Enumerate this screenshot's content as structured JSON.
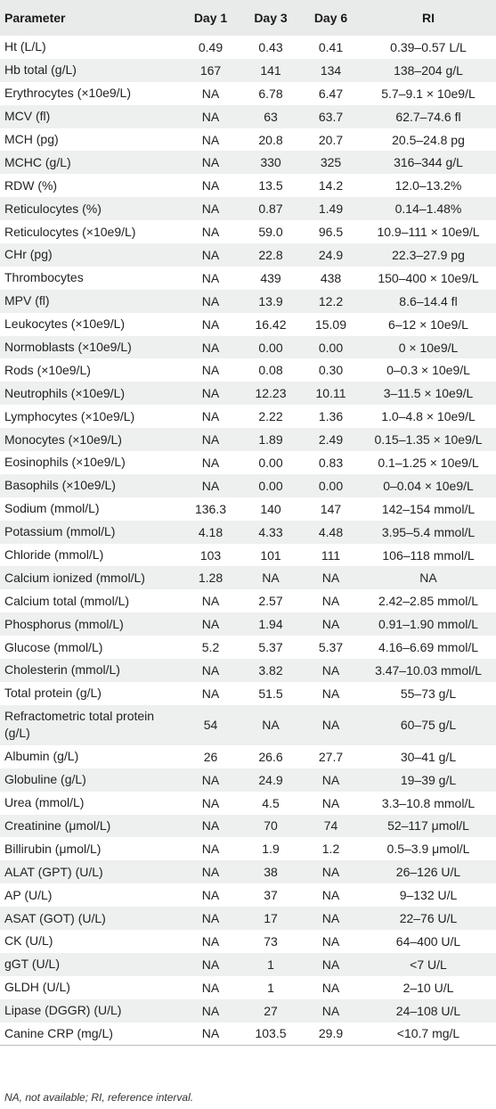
{
  "table": {
    "headers": [
      "Parameter",
      "Day 1",
      "Day 3",
      "Day 6",
      "RI"
    ],
    "rows": [
      [
        "Ht (L/L)",
        "0.49",
        "0.43",
        "0.41",
        "0.39–0.57 L/L"
      ],
      [
        "Hb total (g/L)",
        "167",
        "141",
        "134",
        "138–204 g/L"
      ],
      [
        "Erythrocytes (×10e9/L)",
        "NA",
        "6.78",
        "6.47",
        "5.7–9.1 × 10e9/L"
      ],
      [
        "MCV (fl)",
        "NA",
        "63",
        "63.7",
        "62.7–74.6 fl"
      ],
      [
        "MCH (pg)",
        "NA",
        "20.8",
        "20.7",
        "20.5–24.8 pg"
      ],
      [
        "MCHC (g/L)",
        "NA",
        "330",
        "325",
        "316–344 g/L"
      ],
      [
        "RDW (%)",
        "NA",
        "13.5",
        "14.2",
        "12.0–13.2%"
      ],
      [
        "Reticulocytes (%)",
        "NA",
        "0.87",
        "1.49",
        "0.14–1.48%"
      ],
      [
        "Reticulocytes (×10e9/L)",
        "NA",
        "59.0",
        "96.5",
        "10.9–111 × 10e9/L"
      ],
      [
        "CHr (pg)",
        "NA",
        "22.8",
        "24.9",
        "22.3–27.9 pg"
      ],
      [
        "Thrombocytes",
        "NA",
        "439",
        "438",
        "150–400 × 10e9/L"
      ],
      [
        "MPV (fl)",
        "NA",
        "13.9",
        "12.2",
        "8.6–14.4 fl"
      ],
      [
        "Leukocytes (×10e9/L)",
        "NA",
        "16.42",
        "15.09",
        "6–12 × 10e9/L"
      ],
      [
        "Normoblasts (×10e9/L)",
        "NA",
        "0.00",
        "0.00",
        "0 × 10e9/L"
      ],
      [
        "Rods (×10e9/L)",
        "NA",
        "0.08",
        "0.30",
        "0–0.3 × 10e9/L"
      ],
      [
        "Neutrophils (×10e9/L)",
        "NA",
        "12.23",
        "10.11",
        "3–11.5 × 10e9/L"
      ],
      [
        "Lymphocytes (×10e9/L)",
        "NA",
        "2.22",
        "1.36",
        "1.0–4.8 × 10e9/L"
      ],
      [
        "Monocytes (×10e9/L)",
        "NA",
        "1.89",
        "2.49",
        "0.15–1.35 × 10e9/L"
      ],
      [
        "Eosinophils (×10e9/L)",
        "NA",
        "0.00",
        "0.83",
        "0.1–1.25 × 10e9/L"
      ],
      [
        "Basophils (×10e9/L)",
        "NA",
        "0.00",
        "0.00",
        "0–0.04 × 10e9/L"
      ],
      [
        "Sodium (mmol/L)",
        "136.3",
        "140",
        "147",
        "142–154 mmol/L"
      ],
      [
        "Potassium (mmol/L)",
        "4.18",
        "4.33",
        "4.48",
        "3.95–5.4 mmol/L"
      ],
      [
        "Chloride (mmol/L)",
        "103",
        "101",
        "111",
        "106–118 mmol/L"
      ],
      [
        "Calcium ionized (mmol/L)",
        "1.28",
        "NA",
        "NA",
        "NA"
      ],
      [
        "Calcium total (mmol/L)",
        "NA",
        "2.57",
        "NA",
        "2.42–2.85 mmol/L"
      ],
      [
        "Phosphorus (mmol/L)",
        "NA",
        "1.94",
        "NA",
        "0.91–1.90 mmol/L"
      ],
      [
        "Glucose (mmol/L)",
        "5.2",
        "5.37",
        "5.37",
        "4.16–6.69 mmol/L"
      ],
      [
        "Cholesterin (mmol/L)",
        "NA",
        "3.82",
        "NA",
        "3.47–10.03 mmol/L"
      ],
      [
        "Total protein (g/L)",
        "NA",
        "51.5",
        "NA",
        "55–73 g/L"
      ],
      [
        "Refractometric total protein (g/L)",
        "54",
        "NA",
        "NA",
        "60–75 g/L"
      ],
      [
        "Albumin (g/L)",
        "26",
        "26.6",
        "27.7",
        "30–41 g/L"
      ],
      [
        "Globuline (g/L)",
        "NA",
        "24.9",
        "NA",
        "19–39 g/L"
      ],
      [
        "Urea (mmol/L)",
        "NA",
        "4.5",
        "NA",
        "3.3–10.8 mmol/L"
      ],
      [
        "Creatinine (μmol/L)",
        "NA",
        "70",
        "74",
        "52–117 μmol/L"
      ],
      [
        "Billirubin (μmol/L)",
        "NA",
        "1.9",
        "1.2",
        "0.5–3.9 μmol/L"
      ],
      [
        "ALAT (GPT) (U/L)",
        "NA",
        "38",
        "NA",
        "26–126 U/L"
      ],
      [
        "AP (U/L)",
        "NA",
        "37",
        "NA",
        "9–132 U/L"
      ],
      [
        "ASAT (GOT) (U/L)",
        "NA",
        "17",
        "NA",
        "22–76 U/L"
      ],
      [
        "CK (U/L)",
        "NA",
        "73",
        "NA",
        "64–400 U/L"
      ],
      [
        "gGT (U/L)",
        "NA",
        "1",
        "NA",
        "<7 U/L"
      ],
      [
        "GLDH (U/L)",
        "NA",
        "1",
        "NA",
        "2–10 U/L"
      ],
      [
        "Lipase (DGGR) (U/L)",
        "NA",
        "27",
        "NA",
        "24–108 U/L"
      ],
      [
        "Canine CRP (mg/L)",
        "NA",
        "103.5",
        "29.9",
        "<10.7 mg/L"
      ]
    ]
  },
  "footnote": "NA, not available; RI, reference interval.",
  "colors": {
    "header_bg": "#e9eaea",
    "alt_row_bg": "#eeefef"
  }
}
